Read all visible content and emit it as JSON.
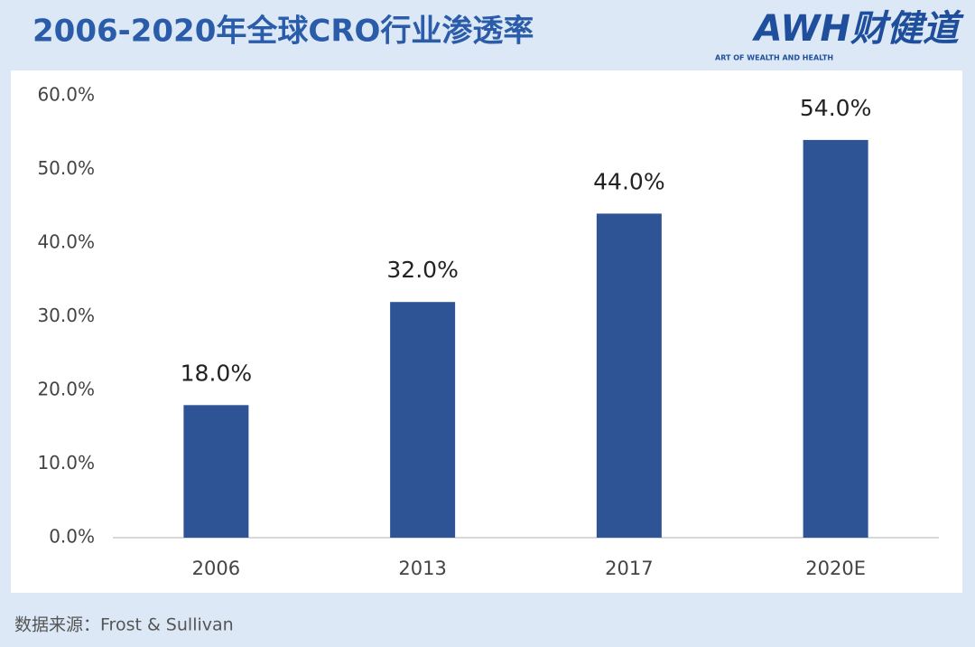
{
  "chart_data": {
    "type": "bar",
    "title": "2006-2020年全球CRO行业渗透率",
    "source": "数据来源：Frost & Sullivan",
    "categories": [
      "2006",
      "2013",
      "2017",
      "2020E"
    ],
    "values": [
      18,
      32,
      44,
      54
    ],
    "value_labels": [
      "18.0%",
      "32.0%",
      "44.0%",
      "54.0%"
    ],
    "color": "#2f5496",
    "ylim": [
      0,
      60
    ],
    "yticks": [
      {
        "value": 0,
        "label": "0.0%"
      },
      {
        "value": 10,
        "label": "10.0%"
      },
      {
        "value": 20,
        "label": "20.0%"
      },
      {
        "value": 30,
        "label": "30.0%"
      },
      {
        "value": 40,
        "label": "40.0%"
      },
      {
        "value": 50,
        "label": "50.0%"
      },
      {
        "value": 60,
        "label": "60.0%"
      }
    ],
    "grid": false
  },
  "logo": {
    "text": "AWH财健道",
    "subtitle": "ART OF WEALTH AND HEALTH"
  }
}
